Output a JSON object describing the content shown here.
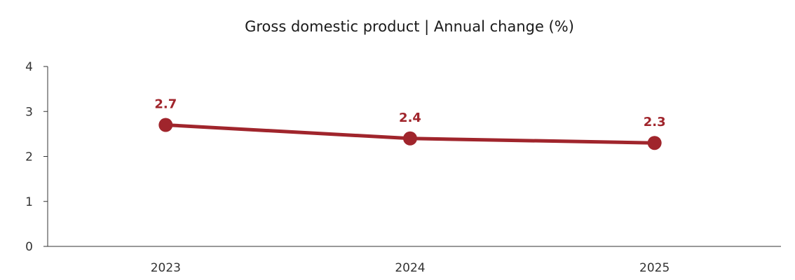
{
  "chart_data": {
    "type": "line",
    "title": "Gross domestic product | Annual change (%)",
    "xlabel": "",
    "ylabel": "",
    "categories": [
      "2023",
      "2024",
      "2025"
    ],
    "series": [
      {
        "values": [
          2.7,
          2.4,
          2.3
        ],
        "data_labels": [
          "2.7",
          "2.4",
          "2.3"
        ],
        "color": "#a0252c"
      }
    ],
    "ylim": [
      0,
      4
    ],
    "yticks": [
      0,
      1,
      2,
      3,
      4
    ],
    "ytick_labels": [
      "0",
      "1",
      "2",
      "3",
      "4"
    ],
    "grid": false,
    "legend": "none"
  }
}
